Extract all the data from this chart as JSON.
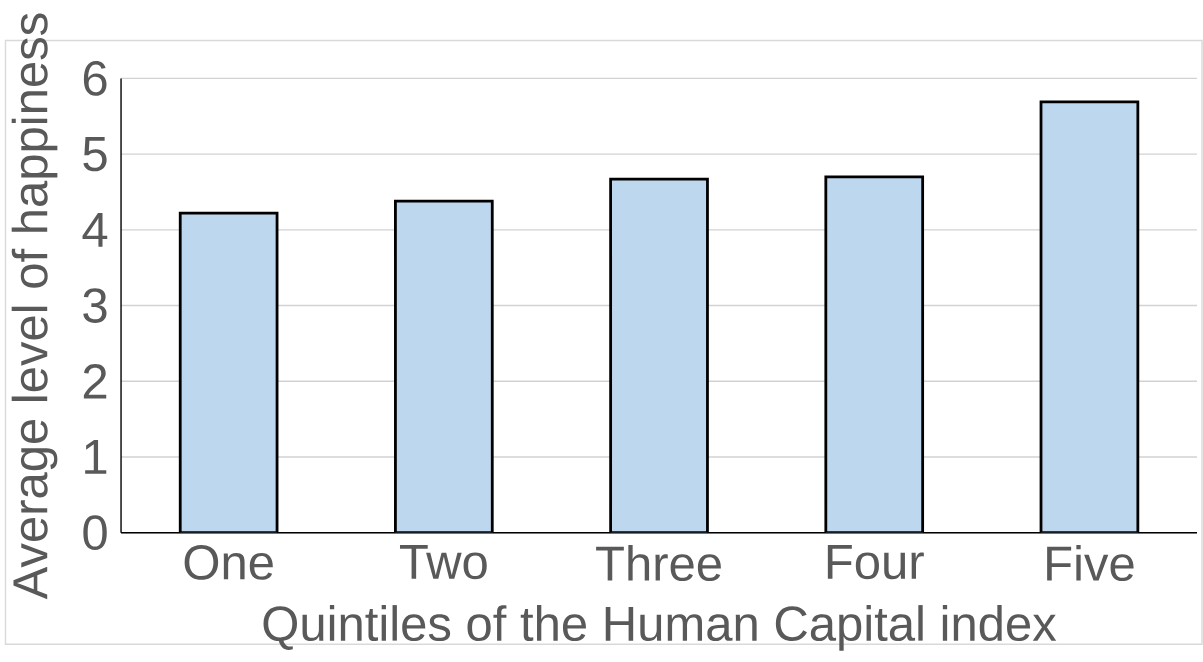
{
  "chart_data": {
    "type": "bar",
    "xlabel": "Quintiles of the Human Capital index",
    "ylabel": "Average level of happiness",
    "categories": [
      "One",
      "Two",
      "Three",
      "Four",
      "Five"
    ],
    "values": [
      4.22,
      4.38,
      4.67,
      4.7,
      5.69
    ],
    "color": "#bdd7ee",
    "ylim": [
      0,
      6
    ],
    "yticks": [
      0,
      1,
      2,
      3,
      4,
      5,
      6
    ],
    "grid": "y"
  }
}
